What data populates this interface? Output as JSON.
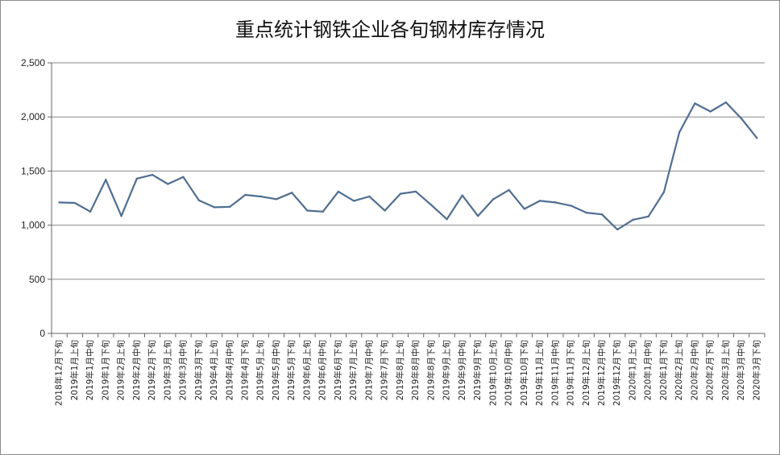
{
  "chart_data": {
    "type": "line",
    "title": "重点统计钢铁企业各旬钢材库存情况",
    "xlabel": "",
    "ylabel": "",
    "ylim": [
      0,
      2500
    ],
    "yticks": [
      0,
      500,
      1000,
      1500,
      2000,
      2500
    ],
    "ytick_labels": [
      "0",
      "500",
      "1,000",
      "1,500",
      "2,000",
      "2,500"
    ],
    "grid": true,
    "legend": "none",
    "line_color": "#4f6e91",
    "categories": [
      "2018年12月下旬",
      "2019年1月上旬",
      "2019年1月中旬",
      "2019年1月下旬",
      "2019年2月上旬",
      "2019年2月中旬",
      "2019年2月下旬",
      "2019年3月上旬",
      "2019年3月中旬",
      "2019年3月下旬",
      "2019年4月上旬",
      "2019年4月中旬",
      "2019年4月下旬",
      "2019年5月上旬",
      "2019年5月中旬",
      "2019年5月下旬",
      "2019年6月上旬",
      "2019年6月中旬",
      "2019年6月下旬",
      "2019年7月上旬",
      "2019年7月中旬",
      "2019年7月下旬",
      "2019年8月上旬",
      "2019年8月中旬",
      "2019年8月下旬",
      "2019年9月上旬",
      "2019年9月中旬",
      "2019年9月下旬",
      "2019年10月上旬",
      "2019年10月中旬",
      "2019年10月下旬",
      "2019年11月上旬",
      "2019年11月中旬",
      "2019年11月下旬",
      "2019年12月上旬",
      "2019年12月中旬",
      "2019年12月下旬",
      "2020年1月上旬",
      "2020年1月中旬",
      "2020年1月下旬",
      "2020年2月上旬",
      "2020年2月中旬",
      "2020年2月下旬",
      "2020年3月上旬",
      "2020年3月中旬",
      "2020年3月下旬"
    ],
    "series": [
      {
        "values": [
          1210,
          1205,
          1125,
          1420,
          1085,
          1430,
          1465,
          1380,
          1445,
          1230,
          1165,
          1170,
          1280,
          1265,
          1240,
          1300,
          1135,
          1125,
          1310,
          1225,
          1265,
          1135,
          1290,
          1310,
          1185,
          1055,
          1275,
          1085,
          1240,
          1325,
          1150,
          1225,
          1210,
          1180,
          1115,
          1100,
          960,
          1050,
          1080,
          1305,
          1860,
          2125,
          2050,
          2135,
          1985,
          1805
        ]
      }
    ]
  }
}
